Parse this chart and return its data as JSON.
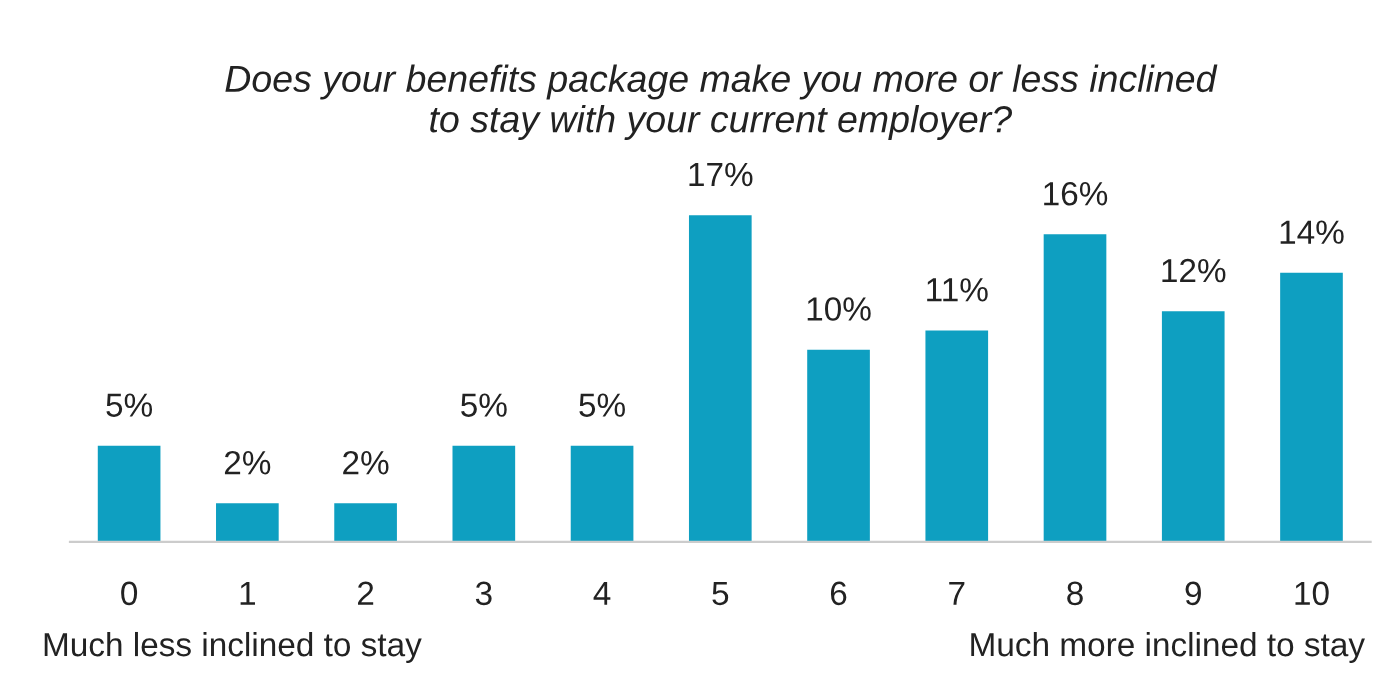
{
  "chart_data": {
    "type": "bar",
    "title": "Does your benefits package make you more or less inclined\nto stay with your current employer?",
    "categories": [
      "0",
      "1",
      "2",
      "3",
      "4",
      "5",
      "6",
      "7",
      "8",
      "9",
      "10"
    ],
    "values": [
      5,
      2,
      2,
      5,
      5,
      17,
      10,
      11,
      16,
      12,
      14
    ],
    "value_labels": [
      "5%",
      "2%",
      "2%",
      "5%",
      "5%",
      "17%",
      "10%",
      "11%",
      "16%",
      "12%",
      "14%"
    ],
    "color": "#0e9fc1",
    "annotations": [
      "Much less inclined to stay",
      "Much more inclined to stay"
    ],
    "grid": false,
    "legend": false
  }
}
